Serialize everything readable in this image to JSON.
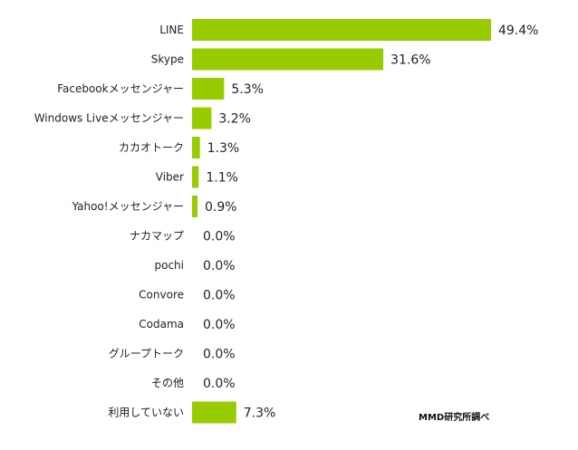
{
  "chart_data": {
    "type": "bar",
    "orientation": "horizontal",
    "categories": [
      "LINE",
      "Skype",
      "Facebookメッセンジャー",
      "Windows Liveメッセンジャー",
      "カカオトーク",
      "Viber",
      "Yahoo!メッセンジャー",
      "ナカマップ",
      "pochi",
      "Convore",
      "Codama",
      "グループトーク",
      "その他",
      "利用していない"
    ],
    "values": [
      49.4,
      31.6,
      5.3,
      3.2,
      1.3,
      1.1,
      0.9,
      0.0,
      0.0,
      0.0,
      0.0,
      0.0,
      0.0,
      7.3
    ],
    "value_labels": [
      "49.4%",
      "31.6%",
      "5.3%",
      "3.2%",
      "1.3%",
      "1.1%",
      "0.9%",
      "0.0%",
      "0.0%",
      "0.0%",
      "0.0%",
      "0.0%",
      "0.0%",
      "7.3%"
    ],
    "unit": "%",
    "xlim": [
      0,
      50
    ],
    "grid": false,
    "bar_color": "#99cc00",
    "source": "MMD研究所調べ"
  }
}
